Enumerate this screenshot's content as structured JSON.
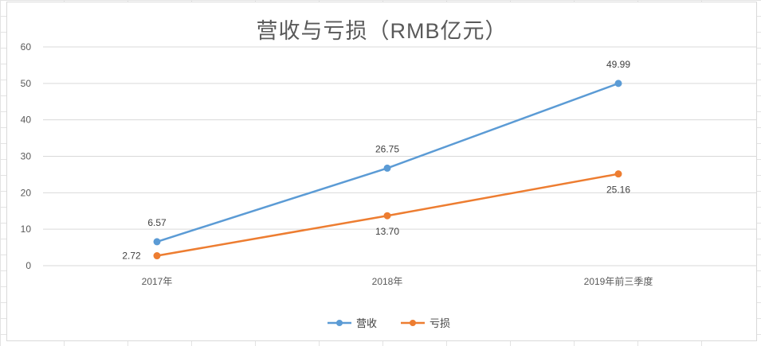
{
  "chart_data": {
    "type": "line",
    "title": "营收与亏损（RMB亿元）",
    "categories": [
      "2017年",
      "2018年",
      "2019年前三季度"
    ],
    "series": [
      {
        "name": "营收",
        "values": [
          6.57,
          26.75,
          49.99
        ],
        "labels": [
          "6.57",
          "26.75",
          "49.99"
        ],
        "color": "#5b9bd5"
      },
      {
        "name": "亏损",
        "values": [
          2.72,
          13.7,
          25.16
        ],
        "labels": [
          "2.72",
          "13.70",
          "25.16"
        ],
        "color": "#ed7d31"
      }
    ],
    "ylim": [
      0,
      60
    ],
    "yticks": [
      "0",
      "10",
      "20",
      "30",
      "40",
      "50",
      "60"
    ],
    "grid": true,
    "legend": "bottom",
    "xlabel": "",
    "ylabel": ""
  }
}
